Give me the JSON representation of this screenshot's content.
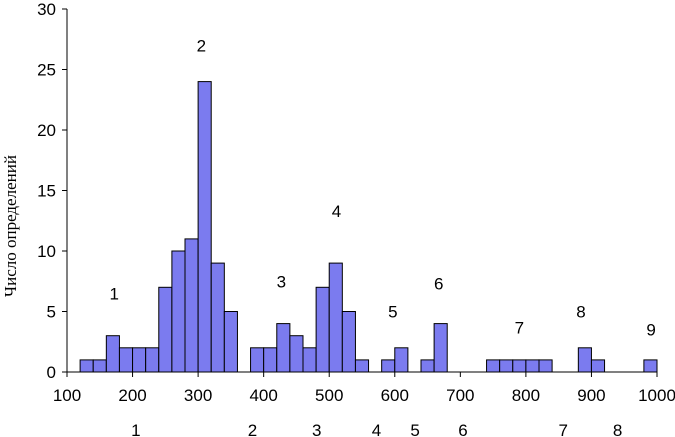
{
  "chart_data": {
    "type": "bar",
    "ylabel": "Число определений",
    "xlabel": "",
    "xlim": [
      100,
      1000
    ],
    "ylim": [
      0,
      30
    ],
    "x_ticks": [
      100,
      200,
      300,
      400,
      500,
      600,
      700,
      800,
      900,
      1000
    ],
    "y_ticks": [
      0,
      5,
      10,
      15,
      20,
      25,
      30
    ],
    "bin_width": 20,
    "bar_color": "#7b7bef",
    "bins": [
      {
        "x": 130,
        "value": 1
      },
      {
        "x": 150,
        "value": 1
      },
      {
        "x": 170,
        "value": 3
      },
      {
        "x": 190,
        "value": 2
      },
      {
        "x": 210,
        "value": 2
      },
      {
        "x": 230,
        "value": 2
      },
      {
        "x": 250,
        "value": 7
      },
      {
        "x": 270,
        "value": 10
      },
      {
        "x": 290,
        "value": 11
      },
      {
        "x": 310,
        "value": 24
      },
      {
        "x": 330,
        "value": 9
      },
      {
        "x": 350,
        "value": 5
      },
      {
        "x": 390,
        "value": 2
      },
      {
        "x": 410,
        "value": 2
      },
      {
        "x": 430,
        "value": 4
      },
      {
        "x": 450,
        "value": 3
      },
      {
        "x": 470,
        "value": 2
      },
      {
        "x": 490,
        "value": 7
      },
      {
        "x": 510,
        "value": 9
      },
      {
        "x": 530,
        "value": 5
      },
      {
        "x": 550,
        "value": 1
      },
      {
        "x": 590,
        "value": 1
      },
      {
        "x": 610,
        "value": 2
      },
      {
        "x": 650,
        "value": 1
      },
      {
        "x": 670,
        "value": 4
      },
      {
        "x": 750,
        "value": 1
      },
      {
        "x": 770,
        "value": 1
      },
      {
        "x": 790,
        "value": 1
      },
      {
        "x": 810,
        "value": 1
      },
      {
        "x": 830,
        "value": 1
      },
      {
        "x": 890,
        "value": 2
      },
      {
        "x": 910,
        "value": 1
      },
      {
        "x": 990,
        "value": 1
      }
    ],
    "peak_labels": [
      {
        "text": "1",
        "x": 172,
        "y": 6
      },
      {
        "text": "2",
        "x": 305,
        "y": 26.5
      },
      {
        "text": "3",
        "x": 427,
        "y": 7
      },
      {
        "text": "4",
        "x": 511,
        "y": 12.8
      },
      {
        "text": "5",
        "x": 597,
        "y": 4.5
      },
      {
        "text": "6",
        "x": 667,
        "y": 6.8
      },
      {
        "text": "7",
        "x": 790,
        "y": 3.2
      },
      {
        "text": "8",
        "x": 884,
        "y": 4.5
      },
      {
        "text": "9",
        "x": 991,
        "y": 3
      }
    ],
    "lower_labels": [
      {
        "text": "1",
        "x": 205
      },
      {
        "text": "2",
        "x": 383
      },
      {
        "text": "3",
        "x": 481
      },
      {
        "text": "4",
        "x": 572
      },
      {
        "text": "5",
        "x": 631
      },
      {
        "text": "6",
        "x": 704
      },
      {
        "text": "7",
        "x": 857
      },
      {
        "text": "8",
        "x": 940
      }
    ]
  }
}
